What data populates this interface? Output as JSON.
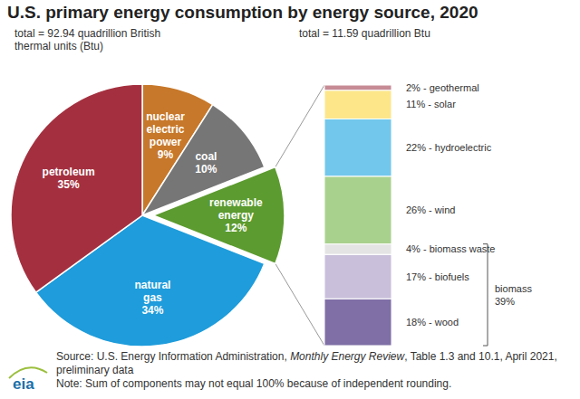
{
  "chart_data": [
    {
      "type": "pie",
      "title": "U.S. primary energy consumption by energy source, 2020",
      "subtitle": "total = 92.94 quadrillion British thermal units (Btu)",
      "categories": [
        "nuclear electric power",
        "coal",
        "renewable energy",
        "natural gas",
        "petroleum"
      ],
      "values": [
        9,
        10,
        12,
        34,
        35
      ],
      "value_labels": [
        "9%",
        "10%",
        "12%",
        "34%",
        "35%"
      ],
      "colors": [
        "#c7782a",
        "#767676",
        "#5c9b2f",
        "#1e9cdb",
        "#a4303f"
      ],
      "data_labels": true
    },
    {
      "type": "bar",
      "stacked": true,
      "subtitle": "total = 11.59 quadrillion Btu",
      "categories": [
        "geothermal",
        "solar",
        "hydroelectric",
        "wind",
        "biomass waste",
        "biofuels",
        "wood"
      ],
      "values": [
        2,
        11,
        22,
        26,
        4,
        17,
        18
      ],
      "value_labels": [
        "2% - geothermal",
        "11% - solar",
        "22% - hydroelectric",
        "26% - wind",
        "4% - biomass waste",
        "17% - biofuels",
        "18% - wood"
      ],
      "colors": [
        "#c68b95",
        "#fde68a",
        "#72c7ec",
        "#a9d18e",
        "#e4e4e4",
        "#c9bfdb",
        "#7f6fa6"
      ],
      "data_labels": true,
      "tick_labels": false,
      "groups": [
        {
          "name": "biomass",
          "value": 39,
          "value_label": "39%",
          "members": [
            "biomass waste",
            "biofuels",
            "wood"
          ]
        }
      ]
    }
  ],
  "source": {
    "prefix": "Source: U.S. Energy Information Administration, ",
    "italic": "Monthly Energy Review",
    "suffix": ", Table 1.3 and 10.1, April 2021, preliminary data"
  },
  "note": "Note: Sum of components may not equal 100% because of independent rounding.",
  "logo": "eia"
}
